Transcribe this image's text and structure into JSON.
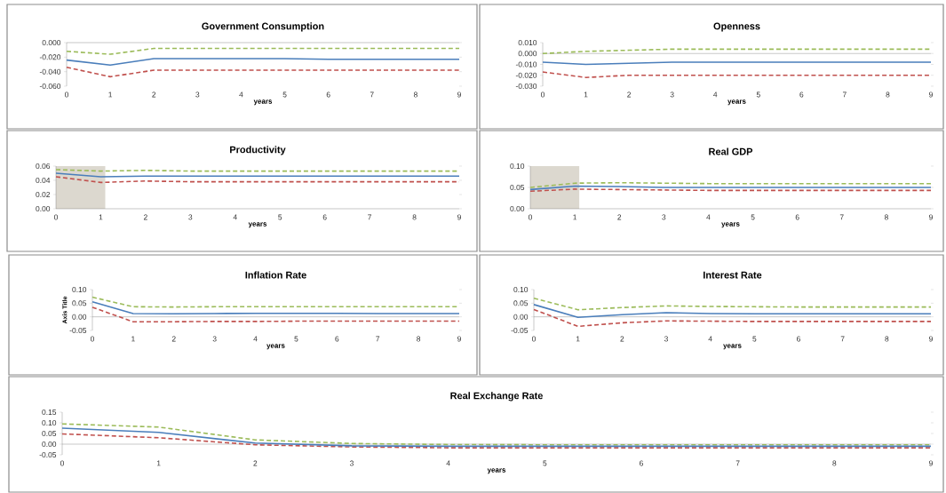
{
  "chart_data": [
    {
      "type": "line",
      "title": "Government Consumption",
      "xlabel": "years",
      "x": [
        0,
        1,
        2,
        3,
        4,
        5,
        6,
        7,
        8,
        9
      ],
      "xlim": [
        0,
        9
      ],
      "xticks": [
        0,
        1,
        2,
        3,
        4,
        5,
        6,
        7,
        8,
        9
      ],
      "ylim": [
        -0.06,
        0
      ],
      "yticks": [
        {
          "value": -0.06,
          "label": "-0.060"
        },
        {
          "value": -0.04,
          "label": "-0.040"
        },
        {
          "value": -0.02,
          "label": "-0.020"
        },
        {
          "value": 0,
          "label": "0.000"
        }
      ],
      "series": [
        {
          "color": "#9bbb59",
          "line_style": "dashed",
          "values": [
            -0.012,
            -0.016,
            -0.008,
            -0.008,
            -0.008,
            -0.008,
            -0.008,
            -0.008,
            -0.008,
            -0.008
          ]
        },
        {
          "color": "#c0504d",
          "line_style": "dashed",
          "values": [
            -0.034,
            -0.047,
            -0.038,
            -0.038,
            -0.038,
            -0.038,
            -0.038,
            -0.038,
            -0.038,
            -0.038
          ]
        },
        {
          "color": "#4a7ebb",
          "line_style": "solid",
          "values": [
            -0.024,
            -0.031,
            -0.022,
            -0.022,
            -0.022,
            -0.022,
            -0.023,
            -0.023,
            -0.023,
            -0.023
          ]
        }
      ]
    },
    {
      "type": "line",
      "title": "Openness",
      "xlabel": "years",
      "x": [
        0,
        1,
        2,
        3,
        4,
        5,
        6,
        7,
        8,
        9
      ],
      "xlim": [
        0,
        9
      ],
      "xticks": [
        0,
        1,
        2,
        3,
        4,
        5,
        6,
        7,
        8,
        9
      ],
      "ylim": [
        -0.03,
        0.01
      ],
      "yticks": [
        {
          "value": -0.03,
          "label": "-0.030"
        },
        {
          "value": -0.02,
          "label": "-0.020"
        },
        {
          "value": -0.01,
          "label": "-0.010"
        },
        {
          "value": 0,
          "label": "0.000"
        },
        {
          "value": 0.01,
          "label": "0.010"
        }
      ],
      "series": [
        {
          "color": "#9bbb59",
          "line_style": "dashed",
          "values": [
            0.0,
            0.002,
            0.003,
            0.004,
            0.004,
            0.004,
            0.004,
            0.004,
            0.004,
            0.004
          ]
        },
        {
          "color": "#c0504d",
          "line_style": "dashed",
          "values": [
            -0.017,
            -0.022,
            -0.02,
            -0.02,
            -0.02,
            -0.02,
            -0.02,
            -0.02,
            -0.02,
            -0.02
          ]
        },
        {
          "color": "#4a7ebb",
          "line_style": "solid",
          "values": [
            -0.008,
            -0.01,
            -0.009,
            -0.008,
            -0.008,
            -0.008,
            -0.008,
            -0.008,
            -0.008,
            -0.008
          ]
        }
      ]
    },
    {
      "type": "line",
      "title": "Productivity",
      "xlabel": "years",
      "x": [
        0,
        1,
        2,
        3,
        4,
        5,
        6,
        7,
        8,
        9
      ],
      "xlim": [
        0,
        9
      ],
      "xticks": [
        0,
        1,
        2,
        3,
        4,
        5,
        6,
        7,
        8,
        9
      ],
      "ylim": [
        0,
        0.06
      ],
      "yticks": [
        {
          "value": 0,
          "label": "0.00"
        },
        {
          "value": 0.02,
          "label": "0.02"
        },
        {
          "value": 0.04,
          "label": "0.04"
        },
        {
          "value": 0.06,
          "label": "0.06"
        }
      ],
      "bands": [
        {
          "axis": "x",
          "from": 0,
          "to": 1.1,
          "color": "#dcd8cf"
        }
      ],
      "series": [
        {
          "color": "#9bbb59",
          "line_style": "dashed",
          "values": [
            0.055,
            0.053,
            0.054,
            0.053,
            0.053,
            0.053,
            0.053,
            0.053,
            0.053,
            0.053
          ]
        },
        {
          "color": "#c0504d",
          "line_style": "dashed",
          "values": [
            0.045,
            0.037,
            0.039,
            0.038,
            0.038,
            0.038,
            0.038,
            0.038,
            0.038,
            0.038
          ]
        },
        {
          "color": "#4a7ebb",
          "line_style": "solid",
          "values": [
            0.05,
            0.045,
            0.046,
            0.046,
            0.046,
            0.046,
            0.046,
            0.046,
            0.046,
            0.046
          ]
        }
      ]
    },
    {
      "type": "line",
      "title": "Real GDP",
      "xlabel": "years",
      "x": [
        0,
        1,
        2,
        3,
        4,
        5,
        6,
        7,
        8,
        9
      ],
      "xlim": [
        0,
        9
      ],
      "xticks": [
        0,
        1,
        2,
        3,
        4,
        5,
        6,
        7,
        8,
        9
      ],
      "ylim": [
        0,
        0.1
      ],
      "yticks": [
        {
          "value": 0,
          "label": "0.00"
        },
        {
          "value": 0.05,
          "label": "0.05"
        },
        {
          "value": 0.1,
          "label": "0.10"
        }
      ],
      "bands": [
        {
          "axis": "x",
          "from": 0,
          "to": 1.1,
          "color": "#dcd8cf"
        }
      ],
      "series": [
        {
          "color": "#9bbb59",
          "line_style": "dashed",
          "values": [
            0.05,
            0.06,
            0.061,
            0.06,
            0.059,
            0.059,
            0.059,
            0.059,
            0.059,
            0.059
          ]
        },
        {
          "color": "#c0504d",
          "line_style": "dashed",
          "values": [
            0.041,
            0.046,
            0.045,
            0.044,
            0.043,
            0.043,
            0.043,
            0.043,
            0.043,
            0.043
          ]
        },
        {
          "color": "#4a7ebb",
          "line_style": "solid",
          "values": [
            0.045,
            0.053,
            0.052,
            0.05,
            0.05,
            0.05,
            0.05,
            0.05,
            0.05,
            0.05
          ]
        }
      ]
    },
    {
      "type": "line",
      "title": "Inflation Rate",
      "xlabel": "years",
      "ylabel": "Axis Title",
      "x": [
        0,
        1,
        2,
        3,
        4,
        5,
        6,
        7,
        8,
        9
      ],
      "xlim": [
        0,
        9
      ],
      "xticks": [
        0,
        1,
        2,
        3,
        4,
        5,
        6,
        7,
        8,
        9
      ],
      "ylim": [
        -0.05,
        0.1
      ],
      "yticks": [
        {
          "value": -0.05,
          "label": "-0.05"
        },
        {
          "value": 0,
          "label": "0.00"
        },
        {
          "value": 0.05,
          "label": "0.05"
        },
        {
          "value": 0.1,
          "label": "0.10"
        }
      ],
      "series": [
        {
          "color": "#9bbb59",
          "line_style": "dashed",
          "values": [
            0.072,
            0.037,
            0.036,
            0.037,
            0.037,
            0.037,
            0.037,
            0.037,
            0.037,
            0.037
          ]
        },
        {
          "color": "#c0504d",
          "line_style": "dashed",
          "values": [
            0.035,
            -0.018,
            -0.018,
            -0.017,
            -0.017,
            -0.016,
            -0.016,
            -0.016,
            -0.016,
            -0.016
          ]
        },
        {
          "color": "#4a7ebb",
          "line_style": "solid",
          "values": [
            0.055,
            0.012,
            0.011,
            0.012,
            0.013,
            0.013,
            0.013,
            0.012,
            0.012,
            0.012
          ]
        }
      ]
    },
    {
      "type": "line",
      "title": "Interest Rate",
      "xlabel": "years",
      "x": [
        0,
        1,
        2,
        3,
        4,
        5,
        6,
        7,
        8,
        9
      ],
      "xlim": [
        0,
        9
      ],
      "xticks": [
        0,
        1,
        2,
        3,
        4,
        5,
        6,
        7,
        8,
        9
      ],
      "ylim": [
        -0.05,
        0.1
      ],
      "yticks": [
        {
          "value": -0.05,
          "label": "-0.05"
        },
        {
          "value": 0,
          "label": "0.00"
        },
        {
          "value": 0.05,
          "label": "0.05"
        },
        {
          "value": 0.1,
          "label": "0.10"
        }
      ],
      "series": [
        {
          "color": "#9bbb59",
          "line_style": "dashed",
          "values": [
            0.068,
            0.026,
            0.034,
            0.04,
            0.038,
            0.037,
            0.036,
            0.036,
            0.036,
            0.036
          ]
        },
        {
          "color": "#c0504d",
          "line_style": "dashed",
          "values": [
            0.027,
            -0.035,
            -0.022,
            -0.015,
            -0.016,
            -0.017,
            -0.017,
            -0.017,
            -0.017,
            -0.017
          ]
        },
        {
          "color": "#4a7ebb",
          "line_style": "solid",
          "values": [
            0.045,
            -0.002,
            0.008,
            0.015,
            0.012,
            0.011,
            0.011,
            0.011,
            0.011,
            0.011
          ]
        }
      ]
    },
    {
      "type": "line",
      "title": "Real Exchange Rate",
      "xlabel": "years",
      "x": [
        0,
        1,
        2,
        3,
        4,
        5,
        6,
        7,
        8,
        9
      ],
      "xlim": [
        0,
        9
      ],
      "xticks": [
        0,
        1,
        2,
        3,
        4,
        5,
        6,
        7,
        8,
        9
      ],
      "ylim": [
        -0.05,
        0.15
      ],
      "yticks": [
        {
          "value": -0.05,
          "label": "-0.05"
        },
        {
          "value": 0,
          "label": "0.00"
        },
        {
          "value": 0.05,
          "label": "0.05"
        },
        {
          "value": 0.1,
          "label": "0.10"
        },
        {
          "value": 0.15,
          "label": "0.15"
        }
      ],
      "series": [
        {
          "color": "#9bbb59",
          "line_style": "dashed",
          "values": [
            0.095,
            0.08,
            0.02,
            0.003,
            -0.002,
            -0.003,
            -0.003,
            -0.003,
            -0.003,
            -0.003
          ]
        },
        {
          "color": "#c0504d",
          "line_style": "dashed",
          "values": [
            0.048,
            0.03,
            -0.003,
            -0.013,
            -0.017,
            -0.017,
            -0.017,
            -0.017,
            -0.017,
            -0.017
          ]
        },
        {
          "color": "#4a7ebb",
          "line_style": "solid",
          "values": [
            0.075,
            0.055,
            0.005,
            -0.008,
            -0.01,
            -0.01,
            -0.01,
            -0.01,
            -0.01,
            -0.01
          ]
        }
      ]
    }
  ]
}
